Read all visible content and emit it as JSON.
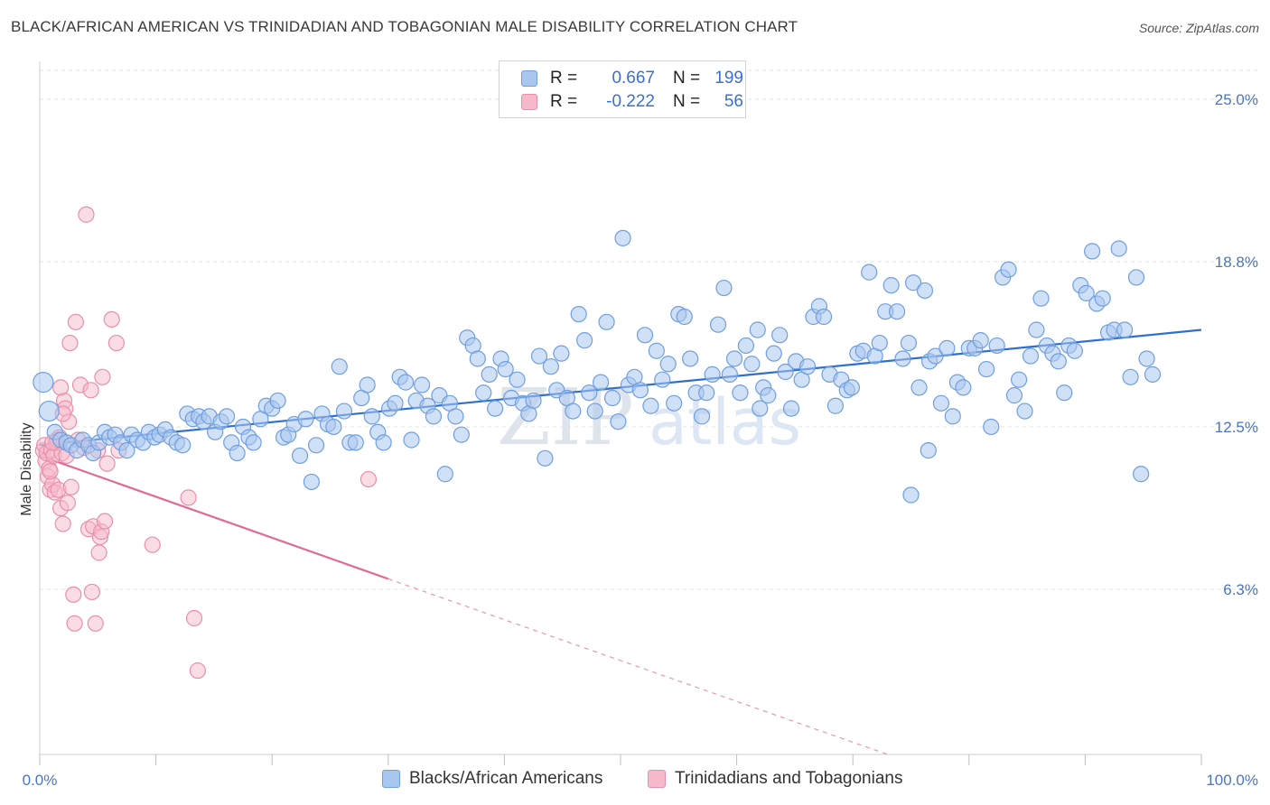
{
  "title": "BLACK/AFRICAN AMERICAN VS TRINIDADIAN AND TOBAGONIAN MALE DISABILITY CORRELATION CHART",
  "source": "Source: ZipAtlas.com",
  "watermark": "ZIPatlas",
  "legend": {
    "rows": [
      {
        "r_label": "R =",
        "r_value": "0.667",
        "n_label": "N =",
        "n_value": "199"
      },
      {
        "r_label": "R =",
        "r_value": "-0.222",
        "n_label": "N =",
        "n_value": "56"
      }
    ]
  },
  "bottom_legend": [
    "Blacks/African Americans",
    "Trinidadians and Tobagonians"
  ],
  "colors": {
    "blue_fill": "#a9c6ef",
    "blue_stroke": "#6f9fe0",
    "blue_line": "#2f6fd0",
    "pink_fill": "#f6b9cb",
    "pink_stroke": "#ea8fab",
    "pink_line": "#e06a93",
    "tick_label": "#4a74c9",
    "grid": "#e3e3e3"
  },
  "chart_data": {
    "type": "scatter",
    "title": "BLACK/AFRICAN AMERICAN VS TRINIDADIAN AND TOBAGONIAN MALE DISABILITY CORRELATION CHART",
    "xlabel": "",
    "ylabel": "Male Disability",
    "x_tick_labels": [
      "0.0%",
      "100.0%"
    ],
    "y_tick_labels": [
      "25.0%",
      "18.8%",
      "12.5%",
      "6.3%"
    ],
    "y_ticks": [
      25.0,
      18.8,
      12.5,
      6.3
    ],
    "xlim": [
      0,
      100
    ],
    "ylim": [
      0,
      26.1
    ],
    "grid": "horizontal dashed",
    "legend_position": "top-center",
    "series": [
      {
        "name": "Blacks/African Americans",
        "color": "#a9c6ef",
        "trend": {
          "x": [
            0,
            100
          ],
          "y": [
            11.8,
            16.2
          ],
          "style": "solid"
        },
        "points": [
          [
            0.3,
            14.2
          ],
          [
            0.8,
            13.1
          ],
          [
            1.3,
            12.3
          ],
          [
            1.8,
            12.0
          ],
          [
            2.3,
            11.9
          ],
          [
            2.7,
            11.8
          ],
          [
            3.2,
            11.6
          ],
          [
            3.7,
            12.0
          ],
          [
            4.2,
            11.8
          ],
          [
            4.6,
            11.5
          ],
          [
            5.1,
            11.9
          ],
          [
            5.6,
            12.3
          ],
          [
            6.0,
            12.1
          ],
          [
            6.5,
            12.2
          ],
          [
            7.0,
            11.9
          ],
          [
            7.5,
            11.6
          ],
          [
            7.9,
            12.2
          ],
          [
            8.4,
            12.0
          ],
          [
            8.9,
            11.9
          ],
          [
            9.4,
            12.3
          ],
          [
            9.9,
            12.1
          ],
          [
            10.3,
            12.2
          ],
          [
            10.8,
            12.4
          ],
          [
            11.3,
            12.1
          ],
          [
            11.8,
            11.9
          ],
          [
            12.3,
            11.8
          ],
          [
            12.7,
            13.0
          ],
          [
            13.2,
            12.8
          ],
          [
            13.7,
            12.9
          ],
          [
            14.1,
            12.7
          ],
          [
            14.6,
            12.9
          ],
          [
            15.1,
            12.3
          ],
          [
            15.6,
            12.7
          ],
          [
            16.1,
            12.9
          ],
          [
            16.5,
            11.9
          ],
          [
            17.0,
            11.5
          ],
          [
            17.5,
            12.5
          ],
          [
            18.0,
            12.1
          ],
          [
            18.4,
            11.9
          ],
          [
            19.0,
            12.8
          ],
          [
            19.5,
            13.3
          ],
          [
            20.0,
            13.2
          ],
          [
            20.5,
            13.5
          ],
          [
            21.0,
            12.1
          ],
          [
            21.4,
            12.2
          ],
          [
            21.9,
            12.6
          ],
          [
            22.4,
            11.4
          ],
          [
            22.9,
            12.8
          ],
          [
            23.4,
            10.4
          ],
          [
            23.8,
            11.8
          ],
          [
            24.3,
            13.0
          ],
          [
            24.8,
            12.6
          ],
          [
            25.3,
            12.5
          ],
          [
            25.8,
            14.8
          ],
          [
            26.2,
            13.1
          ],
          [
            26.7,
            11.9
          ],
          [
            27.2,
            11.9
          ],
          [
            27.7,
            13.6
          ],
          [
            28.2,
            14.1
          ],
          [
            28.6,
            12.9
          ],
          [
            29.1,
            12.3
          ],
          [
            29.6,
            11.9
          ],
          [
            30.1,
            13.2
          ],
          [
            30.6,
            13.4
          ],
          [
            31.0,
            14.4
          ],
          [
            31.5,
            14.2
          ],
          [
            32.0,
            12.0
          ],
          [
            32.4,
            13.5
          ],
          [
            32.9,
            14.1
          ],
          [
            33.4,
            13.3
          ],
          [
            33.9,
            12.9
          ],
          [
            34.4,
            13.7
          ],
          [
            34.9,
            10.7
          ],
          [
            35.3,
            13.4
          ],
          [
            35.8,
            12.9
          ],
          [
            36.3,
            12.2
          ],
          [
            36.8,
            15.9
          ],
          [
            37.3,
            15.6
          ],
          [
            37.7,
            15.1
          ],
          [
            38.2,
            13.8
          ],
          [
            38.7,
            14.5
          ],
          [
            39.2,
            13.2
          ],
          [
            39.7,
            15.1
          ],
          [
            40.1,
            14.7
          ],
          [
            40.6,
            13.6
          ],
          [
            41.1,
            14.3
          ],
          [
            41.6,
            13.4
          ],
          [
            42.1,
            13.0
          ],
          [
            42.5,
            13.5
          ],
          [
            43.0,
            15.2
          ],
          [
            43.5,
            11.3
          ],
          [
            44.0,
            14.8
          ],
          [
            44.5,
            13.9
          ],
          [
            44.9,
            15.3
          ],
          [
            45.4,
            13.6
          ],
          [
            45.9,
            13.1
          ],
          [
            46.4,
            16.8
          ],
          [
            46.9,
            15.8
          ],
          [
            47.3,
            13.8
          ],
          [
            47.8,
            13.1
          ],
          [
            48.3,
            14.2
          ],
          [
            48.8,
            16.5
          ],
          [
            49.3,
            13.6
          ],
          [
            49.8,
            12.7
          ],
          [
            50.2,
            19.7
          ],
          [
            50.7,
            14.1
          ],
          [
            51.2,
            14.4
          ],
          [
            51.7,
            13.9
          ],
          [
            52.1,
            16.0
          ],
          [
            52.6,
            13.3
          ],
          [
            53.1,
            15.4
          ],
          [
            53.6,
            14.3
          ],
          [
            54.1,
            14.9
          ],
          [
            54.6,
            13.4
          ],
          [
            55.0,
            16.8
          ],
          [
            55.5,
            16.7
          ],
          [
            56.0,
            15.1
          ],
          [
            56.5,
            13.8
          ],
          [
            57.0,
            12.9
          ],
          [
            57.4,
            13.8
          ],
          [
            57.9,
            14.5
          ],
          [
            58.4,
            16.4
          ],
          [
            58.9,
            17.8
          ],
          [
            59.4,
            14.5
          ],
          [
            59.8,
            15.1
          ],
          [
            60.3,
            13.8
          ],
          [
            60.8,
            15.6
          ],
          [
            61.3,
            14.9
          ],
          [
            61.8,
            16.2
          ],
          [
            62.3,
            14.0
          ],
          [
            62.7,
            13.7
          ],
          [
            63.2,
            15.3
          ],
          [
            63.7,
            16.0
          ],
          [
            64.2,
            14.6
          ],
          [
            64.7,
            13.2
          ],
          [
            65.1,
            15.0
          ],
          [
            65.6,
            14.3
          ],
          [
            66.1,
            14.8
          ],
          [
            66.6,
            16.7
          ],
          [
            67.1,
            17.1
          ],
          [
            67.5,
            16.7
          ],
          [
            68.0,
            14.5
          ],
          [
            68.5,
            13.3
          ],
          [
            69.0,
            14.3
          ],
          [
            69.5,
            13.9
          ],
          [
            69.9,
            14.0
          ],
          [
            70.4,
            15.3
          ],
          [
            70.9,
            15.4
          ],
          [
            71.4,
            18.4
          ],
          [
            71.9,
            15.2
          ],
          [
            72.3,
            15.7
          ],
          [
            72.8,
            16.9
          ],
          [
            73.3,
            17.9
          ],
          [
            73.8,
            16.9
          ],
          [
            74.3,
            15.1
          ],
          [
            74.8,
            15.7
          ],
          [
            75.2,
            18.0
          ],
          [
            75.7,
            14.0
          ],
          [
            76.2,
            17.7
          ],
          [
            76.6,
            15.0
          ],
          [
            77.1,
            15.2
          ],
          [
            77.6,
            13.4
          ],
          [
            78.1,
            15.5
          ],
          [
            78.6,
            12.9
          ],
          [
            79.0,
            14.2
          ],
          [
            79.5,
            14.0
          ],
          [
            80.0,
            15.5
          ],
          [
            80.5,
            15.5
          ],
          [
            81.0,
            15.8
          ],
          [
            81.5,
            14.7
          ],
          [
            81.9,
            12.5
          ],
          [
            82.4,
            15.6
          ],
          [
            82.9,
            18.2
          ],
          [
            83.4,
            18.5
          ],
          [
            83.9,
            13.7
          ],
          [
            84.3,
            14.3
          ],
          [
            84.8,
            13.1
          ],
          [
            85.3,
            15.2
          ],
          [
            85.8,
            16.2
          ],
          [
            86.2,
            17.4
          ],
          [
            86.7,
            15.6
          ],
          [
            87.2,
            15.3
          ],
          [
            87.7,
            15.0
          ],
          [
            88.2,
            13.8
          ],
          [
            88.6,
            15.6
          ],
          [
            89.1,
            15.4
          ],
          [
            89.6,
            17.9
          ],
          [
            90.1,
            17.6
          ],
          [
            90.6,
            19.2
          ],
          [
            91.0,
            17.2
          ],
          [
            91.5,
            17.4
          ],
          [
            92.0,
            16.1
          ],
          [
            92.5,
            16.2
          ],
          [
            92.9,
            19.3
          ],
          [
            93.4,
            16.2
          ],
          [
            93.9,
            14.4
          ],
          [
            94.4,
            18.2
          ],
          [
            94.8,
            10.7
          ],
          [
            95.3,
            15.1
          ],
          [
            95.8,
            14.5
          ],
          [
            75.0,
            9.9
          ],
          [
            76.5,
            11.6
          ],
          [
            62.0,
            13.2
          ]
        ]
      },
      {
        "name": "Trinidadians and Tobagonians",
        "color": "#f6b9cb",
        "trend": {
          "x": [
            0,
            30
          ],
          "y": [
            11.4,
            6.7
          ],
          "style": "solid",
          "extended": {
            "x": [
              30,
              73
            ],
            "y": [
              6.7,
              0.0
            ],
            "style": "dashed"
          }
        },
        "points": [
          [
            0.3,
            11.6
          ],
          [
            0.4,
            11.8
          ],
          [
            0.5,
            11.2
          ],
          [
            0.6,
            11.5
          ],
          [
            0.7,
            10.6
          ],
          [
            0.8,
            10.9
          ],
          [
            0.9,
            10.1
          ],
          [
            1.0,
            11.6
          ],
          [
            1.1,
            10.3
          ],
          [
            1.2,
            11.4
          ],
          [
            1.3,
            10.0
          ],
          [
            1.4,
            11.9
          ],
          [
            1.5,
            12.0
          ],
          [
            1.6,
            10.1
          ],
          [
            1.7,
            12.1
          ],
          [
            1.8,
            9.4
          ],
          [
            1.9,
            11.5
          ],
          [
            2.0,
            8.8
          ],
          [
            2.1,
            13.5
          ],
          [
            2.2,
            13.2
          ],
          [
            2.3,
            11.4
          ],
          [
            2.4,
            9.6
          ],
          [
            2.5,
            12.7
          ],
          [
            2.6,
            15.7
          ],
          [
            2.7,
            10.2
          ],
          [
            2.9,
            6.1
          ],
          [
            3.0,
            5.0
          ],
          [
            3.1,
            16.5
          ],
          [
            3.3,
            12.0
          ],
          [
            3.5,
            14.1
          ],
          [
            3.8,
            11.7
          ],
          [
            4.0,
            20.6
          ],
          [
            4.2,
            8.6
          ],
          [
            4.4,
            13.9
          ],
          [
            4.5,
            6.2
          ],
          [
            4.6,
            8.7
          ],
          [
            4.8,
            5.0
          ],
          [
            5.0,
            11.6
          ],
          [
            5.1,
            7.7
          ],
          [
            5.2,
            8.3
          ],
          [
            5.3,
            8.5
          ],
          [
            5.4,
            14.4
          ],
          [
            5.6,
            8.9
          ],
          [
            5.8,
            11.1
          ],
          [
            6.2,
            16.6
          ],
          [
            6.6,
            15.7
          ],
          [
            6.8,
            11.6
          ],
          [
            1.8,
            14.0
          ],
          [
            2.0,
            13.0
          ],
          [
            0.9,
            10.8
          ],
          [
            1.1,
            11.9
          ],
          [
            9.7,
            8.0
          ],
          [
            12.8,
            9.8
          ],
          [
            13.3,
            5.2
          ],
          [
            13.6,
            3.2
          ],
          [
            28.3,
            10.5
          ]
        ]
      }
    ]
  }
}
